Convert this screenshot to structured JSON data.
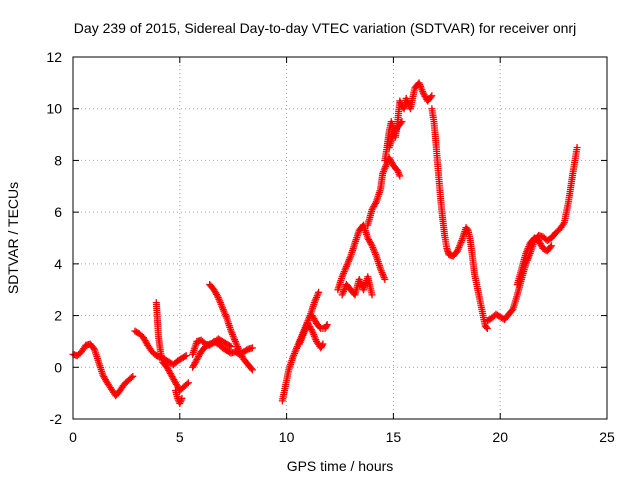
{
  "chart_data": {
    "type": "scatter",
    "title": "Day 239 of 2015, Sidereal Day-to-day VTEC variation (SDTVAR) for receiver onrj",
    "xlabel": "GPS time / hours",
    "ylabel": "SDTVAR / TECUs",
    "xlim": [
      0,
      25
    ],
    "ylim": [
      -2,
      12
    ],
    "x_ticks": [
      0,
      5,
      10,
      15,
      20,
      25
    ],
    "y_ticks": [
      -2,
      0,
      2,
      4,
      6,
      8,
      10,
      12
    ],
    "x_tick_labels": [
      "0",
      "5",
      "10",
      "15",
      "20",
      "25"
    ],
    "y_tick_labels": [
      "-2",
      "0",
      "2",
      "4",
      "6",
      "8",
      "10",
      "12"
    ],
    "grid": true,
    "legend": "none",
    "marker": "+",
    "color": "#ff0000",
    "series": [
      {
        "name": "SDTVAR",
        "segments": [
          [
            [
              0.0,
              0.5
            ],
            [
              0.2,
              0.45
            ],
            [
              0.4,
              0.6
            ],
            [
              0.6,
              0.85
            ],
            [
              0.8,
              0.9
            ],
            [
              1.0,
              0.7
            ],
            [
              1.2,
              0.2
            ],
            [
              1.4,
              -0.3
            ],
            [
              1.6,
              -0.6
            ],
            [
              1.8,
              -0.85
            ],
            [
              2.0,
              -1.1
            ],
            [
              2.2,
              -0.9
            ],
            [
              2.4,
              -0.65
            ],
            [
              2.6,
              -0.5
            ],
            [
              2.8,
              -0.35
            ]
          ],
          [
            [
              2.9,
              1.4
            ],
            [
              3.1,
              1.3
            ],
            [
              3.3,
              1.15
            ],
            [
              3.5,
              0.85
            ],
            [
              3.7,
              0.6
            ],
            [
              3.9,
              0.45
            ],
            [
              4.1,
              0.4
            ],
            [
              4.3,
              0.3
            ],
            [
              4.5,
              0.2
            ],
            [
              4.7,
              0.1
            ],
            [
              4.9,
              0.25
            ],
            [
              5.1,
              0.35
            ],
            [
              5.3,
              0.45
            ]
          ],
          [
            [
              3.9,
              2.5
            ],
            [
              3.95,
              1.9
            ],
            [
              4.0,
              1.2
            ],
            [
              4.1,
              0.6
            ],
            [
              4.2,
              0.2
            ],
            [
              4.4,
              0.0
            ],
            [
              4.6,
              -0.3
            ],
            [
              4.8,
              -0.6
            ],
            [
              5.0,
              -0.9
            ],
            [
              5.2,
              -0.75
            ],
            [
              5.4,
              -0.6
            ]
          ],
          [
            [
              4.8,
              -0.9
            ],
            [
              4.9,
              -1.2
            ],
            [
              5.0,
              -1.4
            ],
            [
              5.1,
              -1.2
            ]
          ],
          [
            [
              5.6,
              0.5
            ],
            [
              5.8,
              1.0
            ],
            [
              6.0,
              1.05
            ],
            [
              6.2,
              0.9
            ],
            [
              6.4,
              0.85
            ],
            [
              6.6,
              1.0
            ],
            [
              6.8,
              0.9
            ],
            [
              7.0,
              0.75
            ],
            [
              7.2,
              0.65
            ],
            [
              7.4,
              0.55
            ],
            [
              7.6,
              0.6
            ],
            [
              7.8,
              0.5
            ],
            [
              8.0,
              0.6
            ],
            [
              8.2,
              0.7
            ],
            [
              8.4,
              0.75
            ]
          ],
          [
            [
              6.4,
              3.2
            ],
            [
              6.6,
              3.0
            ],
            [
              6.8,
              2.7
            ],
            [
              7.0,
              2.3
            ],
            [
              7.2,
              1.9
            ],
            [
              7.4,
              1.4
            ],
            [
              7.6,
              1.0
            ],
            [
              7.8,
              0.6
            ],
            [
              8.0,
              0.3
            ],
            [
              8.2,
              0.1
            ],
            [
              8.4,
              -0.1
            ]
          ],
          [
            [
              5.6,
              0.0
            ],
            [
              5.8,
              0.3
            ],
            [
              6.0,
              0.6
            ],
            [
              6.2,
              0.8
            ],
            [
              6.4,
              0.9
            ],
            [
              6.6,
              0.95
            ],
            [
              6.8,
              1.1
            ],
            [
              7.0,
              1.0
            ],
            [
              7.2,
              0.9
            ],
            [
              7.4,
              0.8
            ]
          ],
          [
            [
              9.8,
              -1.3
            ],
            [
              9.9,
              -0.9
            ],
            [
              10.0,
              -0.5
            ],
            [
              10.1,
              -0.1
            ],
            [
              10.3,
              0.4
            ],
            [
              10.5,
              0.8
            ],
            [
              10.7,
              1.2
            ],
            [
              10.9,
              1.6
            ],
            [
              11.1,
              2.0
            ],
            [
              11.3,
              2.5
            ],
            [
              11.5,
              2.9
            ]
          ],
          [
            [
              10.6,
              0.9
            ],
            [
              10.8,
              1.3
            ],
            [
              11.0,
              1.7
            ],
            [
              11.2,
              1.4
            ],
            [
              11.4,
              1.0
            ],
            [
              11.6,
              0.75
            ],
            [
              11.7,
              0.9
            ]
          ],
          [
            [
              11.2,
              2.0
            ],
            [
              11.4,
              1.7
            ],
            [
              11.6,
              1.5
            ],
            [
              11.8,
              1.5
            ],
            [
              11.9,
              1.65
            ]
          ],
          [
            [
              12.4,
              3.0
            ],
            [
              12.6,
              3.5
            ],
            [
              12.8,
              3.9
            ],
            [
              13.0,
              4.3
            ],
            [
              13.2,
              4.8
            ],
            [
              13.4,
              5.3
            ],
            [
              13.6,
              5.5
            ],
            [
              13.8,
              5.0
            ],
            [
              14.0,
              4.7
            ],
            [
              14.2,
              4.3
            ],
            [
              14.4,
              3.8
            ],
            [
              14.6,
              3.4
            ]
          ],
          [
            [
              12.6,
              2.8
            ],
            [
              12.8,
              3.2
            ],
            [
              13.0,
              3.0
            ],
            [
              13.2,
              2.8
            ],
            [
              13.4,
              3.4
            ],
            [
              13.6,
              3.0
            ],
            [
              13.8,
              3.5
            ],
            [
              14.0,
              2.8
            ]
          ],
          [
            [
              13.8,
              5.5
            ],
            [
              14.0,
              6.1
            ],
            [
              14.2,
              6.4
            ],
            [
              14.4,
              6.9
            ],
            [
              14.5,
              7.5
            ],
            [
              14.6,
              7.7
            ],
            [
              14.8,
              8.1
            ],
            [
              15.0,
              7.8
            ],
            [
              15.2,
              7.6
            ],
            [
              15.3,
              7.4
            ]
          ],
          [
            [
              14.6,
              8.0
            ],
            [
              14.7,
              8.5
            ],
            [
              14.8,
              9.1
            ],
            [
              14.9,
              9.5
            ],
            [
              15.0,
              9.2
            ],
            [
              15.1,
              8.9
            ],
            [
              15.2,
              9.5
            ],
            [
              15.3,
              10.3
            ],
            [
              15.4,
              10.1
            ],
            [
              15.5,
              10.0
            ],
            [
              15.6,
              10.4
            ],
            [
              15.7,
              10.2
            ],
            [
              15.8,
              10.0
            ],
            [
              15.9,
              10.4
            ],
            [
              16.0,
              10.8
            ],
            [
              16.2,
              11.0
            ],
            [
              16.4,
              10.6
            ],
            [
              16.6,
              10.3
            ],
            [
              16.8,
              10.5
            ]
          ],
          [
            [
              14.8,
              8.5
            ],
            [
              15.0,
              9.0
            ],
            [
              15.2,
              9.3
            ],
            [
              15.4,
              9.5
            ]
          ],
          [
            [
              16.8,
              10.0
            ],
            [
              16.9,
              9.5
            ],
            [
              17.0,
              8.6
            ],
            [
              17.1,
              7.6
            ],
            [
              17.2,
              6.6
            ],
            [
              17.3,
              5.8
            ],
            [
              17.4,
              5.1
            ],
            [
              17.5,
              4.6
            ],
            [
              17.6,
              4.35
            ],
            [
              17.8,
              4.3
            ],
            [
              18.0,
              4.5
            ],
            [
              18.2,
              4.9
            ],
            [
              18.4,
              5.4
            ],
            [
              18.5,
              5.3
            ],
            [
              18.6,
              4.9
            ],
            [
              18.7,
              4.3
            ],
            [
              18.8,
              3.6
            ],
            [
              19.0,
              2.8
            ],
            [
              19.2,
              2.0
            ],
            [
              19.3,
              1.6
            ],
            [
              19.4,
              1.5
            ]
          ],
          [
            [
              19.4,
              1.8
            ],
            [
              19.6,
              1.9
            ],
            [
              19.8,
              2.05
            ],
            [
              20.0,
              1.95
            ],
            [
              20.2,
              1.85
            ],
            [
              20.4,
              2.05
            ],
            [
              20.6,
              2.25
            ],
            [
              20.8,
              2.8
            ],
            [
              21.0,
              3.4
            ],
            [
              21.2,
              4.0
            ],
            [
              21.4,
              4.4
            ],
            [
              21.6,
              4.9
            ],
            [
              21.8,
              5.1
            ],
            [
              22.0,
              5.05
            ],
            [
              22.2,
              4.9
            ],
            [
              22.4,
              5.0
            ],
            [
              22.6,
              5.2
            ],
            [
              22.8,
              5.35
            ],
            [
              23.0,
              5.6
            ],
            [
              23.2,
              6.4
            ],
            [
              23.4,
              7.5
            ],
            [
              23.6,
              8.5
            ]
          ],
          [
            [
              20.8,
              3.2
            ],
            [
              21.0,
              3.8
            ],
            [
              21.2,
              4.4
            ],
            [
              21.4,
              4.8
            ],
            [
              21.6,
              5.0
            ],
            [
              21.8,
              4.9
            ],
            [
              22.0,
              4.6
            ],
            [
              22.2,
              4.5
            ],
            [
              22.4,
              4.7
            ]
          ]
        ]
      }
    ]
  }
}
